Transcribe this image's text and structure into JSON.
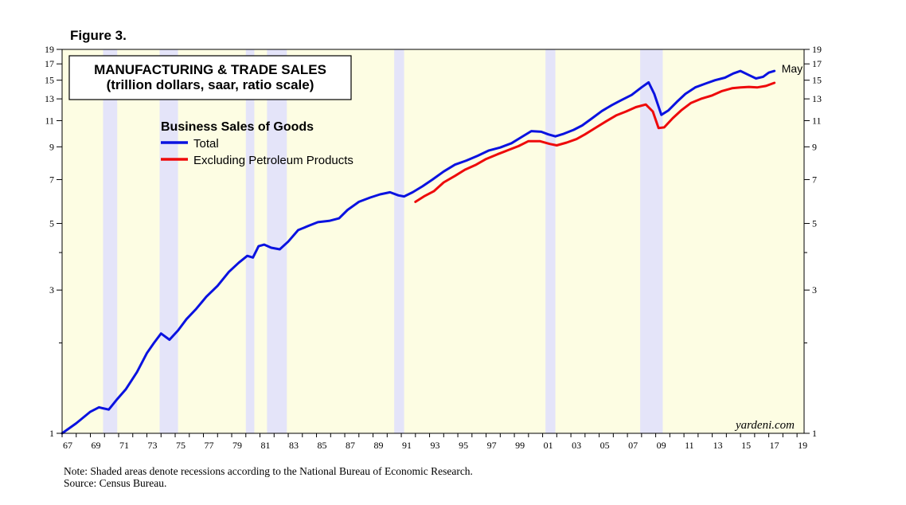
{
  "figure_label": "Figure 3.",
  "colors": {
    "plot_background": "#fdfde3",
    "recession_shading": "#e4e4f9",
    "total_line": "#0a12e0",
    "excl_line": "#ee0a0a",
    "axis": "#000000"
  },
  "chart_data": {
    "type": "line",
    "title": "MANUFACTURING & TRADE SALES",
    "subtitle": "(trillion dollars, saar, ratio scale)",
    "legend_title": "Business Sales of Goods",
    "y_scale": "log",
    "ylim": [
      1,
      19
    ],
    "xlim": [
      1967,
      2019.5
    ],
    "y_ticks": [
      1,
      3,
      5,
      7,
      9,
      11,
      13,
      15,
      17,
      19
    ],
    "y_minor_ticks": [
      2,
      4
    ],
    "x_tick_labels": [
      "67",
      "69",
      "71",
      "73",
      "75",
      "77",
      "79",
      "81",
      "83",
      "85",
      "87",
      "89",
      "91",
      "93",
      "95",
      "97",
      "99",
      "01",
      "03",
      "05",
      "07",
      "09",
      "11",
      "13",
      "15",
      "17",
      "19"
    ],
    "x_tick_years": [
      1967,
      1969,
      1971,
      1973,
      1975,
      1977,
      1979,
      1981,
      1983,
      1985,
      1987,
      1989,
      1991,
      1993,
      1995,
      1997,
      1999,
      2001,
      2003,
      2005,
      2007,
      2009,
      2011,
      2013,
      2015,
      2017,
      2019
    ],
    "recessions": [
      [
        1969.9,
        1970.9
      ],
      [
        1973.9,
        1975.2
      ],
      [
        1980.0,
        1980.6
      ],
      [
        1981.5,
        1982.9
      ],
      [
        1990.5,
        1991.2
      ],
      [
        2001.2,
        2001.9
      ],
      [
        2007.9,
        2009.5
      ]
    ],
    "series": [
      {
        "name": "Total",
        "color": "#0a12e0",
        "x": [
          1967.0,
          1968.0,
          1969.0,
          1969.6,
          1970.3,
          1970.9,
          1971.5,
          1972.3,
          1973.0,
          1973.5,
          1974.0,
          1974.6,
          1975.2,
          1975.8,
          1976.5,
          1977.2,
          1978.0,
          1978.8,
          1979.5,
          1980.1,
          1980.5,
          1980.9,
          1981.3,
          1981.8,
          1982.4,
          1983.0,
          1983.7,
          1984.4,
          1985.1,
          1985.9,
          1986.6,
          1987.2,
          1988.0,
          1988.8,
          1989.5,
          1990.2,
          1990.8,
          1991.2,
          1991.8,
          1992.5,
          1993.2,
          1994.0,
          1994.8,
          1995.6,
          1996.4,
          1997.2,
          1998.0,
          1998.8,
          1999.5,
          2000.2,
          2000.9,
          2001.4,
          2001.9,
          2002.5,
          2003.2,
          2003.8,
          2004.5,
          2005.2,
          2005.9,
          2006.6,
          2007.3,
          2008.0,
          2008.5,
          2008.9,
          2009.4,
          2009.9,
          2010.5,
          2011.1,
          2011.8,
          2012.5,
          2013.2,
          2013.9,
          2014.5,
          2015.0,
          2015.6,
          2016.1,
          2016.6,
          2017.0,
          2017.4
        ],
        "values": [
          1.0,
          1.08,
          1.18,
          1.22,
          1.2,
          1.3,
          1.4,
          1.6,
          1.85,
          2.0,
          2.15,
          2.05,
          2.2,
          2.4,
          2.6,
          2.85,
          3.1,
          3.45,
          3.7,
          3.9,
          3.85,
          4.2,
          4.25,
          4.15,
          4.1,
          4.35,
          4.75,
          4.9,
          5.05,
          5.1,
          5.2,
          5.55,
          5.9,
          6.1,
          6.25,
          6.35,
          6.2,
          6.15,
          6.35,
          6.65,
          7.0,
          7.45,
          7.85,
          8.1,
          8.4,
          8.75,
          8.95,
          9.25,
          9.7,
          10.15,
          10.1,
          9.9,
          9.75,
          9.95,
          10.25,
          10.6,
          11.2,
          11.85,
          12.4,
          12.9,
          13.4,
          14.2,
          14.75,
          13.5,
          11.5,
          11.9,
          12.7,
          13.5,
          14.2,
          14.6,
          15.0,
          15.3,
          15.8,
          16.1,
          15.6,
          15.2,
          15.4,
          15.9,
          16.1
        ]
      },
      {
        "name": "Excluding Petroleum Products",
        "color": "#ee0a0a",
        "x": [
          1992.0,
          1992.6,
          1993.3,
          1994.0,
          1994.8,
          1995.5,
          1996.3,
          1997.0,
          1997.8,
          1998.5,
          1999.3,
          2000.0,
          2000.8,
          2001.5,
          2002.0,
          2002.7,
          2003.4,
          2004.0,
          2004.8,
          2005.5,
          2006.2,
          2006.9,
          2007.6,
          2008.3,
          2008.8,
          2009.2,
          2009.6,
          2010.2,
          2010.8,
          2011.5,
          2012.2,
          2013.0,
          2013.7,
          2014.4,
          2015.0,
          2015.6,
          2016.2,
          2016.8,
          2017.4
        ],
        "values": [
          5.9,
          6.15,
          6.4,
          6.85,
          7.2,
          7.55,
          7.85,
          8.2,
          8.5,
          8.75,
          9.05,
          9.4,
          9.4,
          9.2,
          9.1,
          9.3,
          9.55,
          9.9,
          10.45,
          10.95,
          11.45,
          11.8,
          12.2,
          12.45,
          11.8,
          10.4,
          10.45,
          11.2,
          11.9,
          12.6,
          13.0,
          13.35,
          13.8,
          14.1,
          14.2,
          14.25,
          14.2,
          14.35,
          14.7
        ]
      }
    ],
    "end_label": "May",
    "watermark": "yardeni.com"
  },
  "note": "Note: Shaded areas denote recessions according to the National Bureau of Economic Research.",
  "source": "Source: Census Bureau."
}
